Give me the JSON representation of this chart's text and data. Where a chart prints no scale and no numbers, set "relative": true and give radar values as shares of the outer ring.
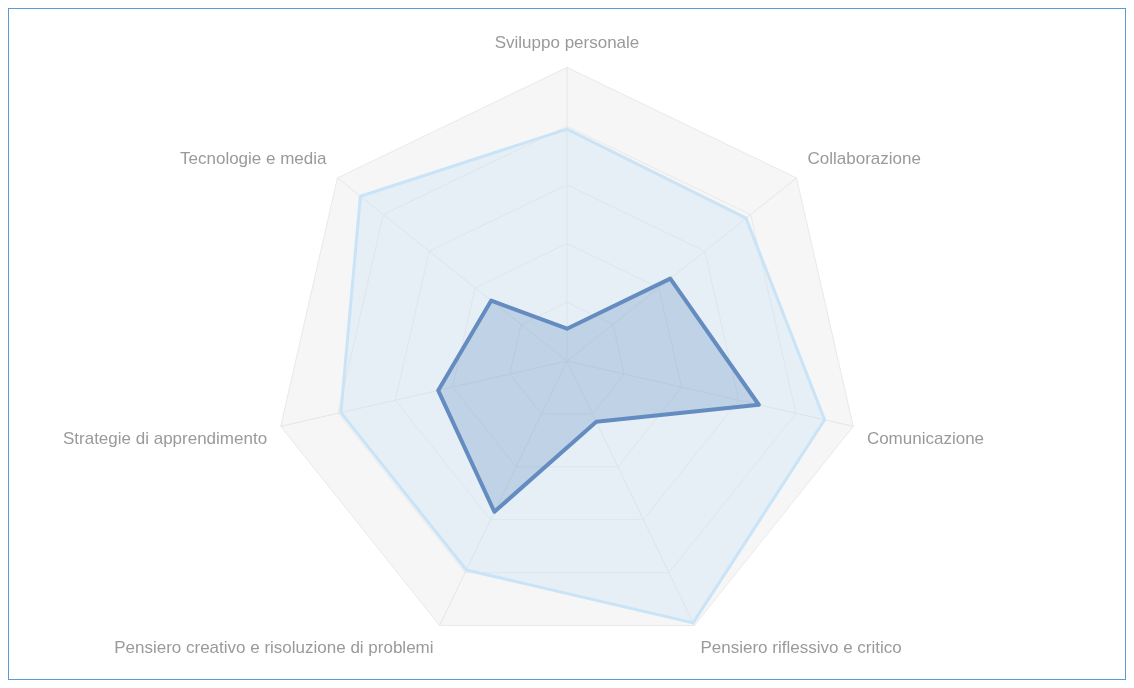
{
  "chart_data": {
    "type": "radar",
    "relative": true,
    "categories": [
      "Sviluppo personale",
      "Collaborazione",
      "Comunicazione",
      "Pensiero riflessivo e critico",
      "Pensiero creativo e risoluzione di problemi",
      "Strategie di apprendimento",
      "Tecnologie e media"
    ],
    "series": [
      {
        "color": "#c9e3f7",
        "values": [
          0.79,
          0.78,
          0.9,
          0.99,
          0.79,
          0.79,
          0.9
        ]
      },
      {
        "color": "#2e5fa3",
        "values": [
          0.11,
          0.45,
          0.67,
          0.23,
          0.57,
          0.45,
          0.33
        ]
      }
    ],
    "grid": true,
    "legend": false,
    "marker": "none"
  }
}
